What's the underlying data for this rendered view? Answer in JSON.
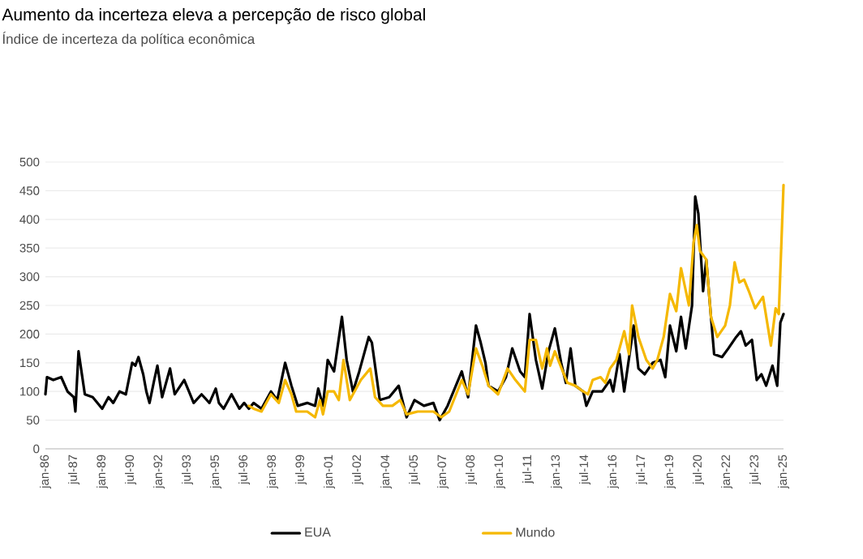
{
  "chart_data": {
    "type": "line",
    "title": "Aumento da incerteza eleva a percepção de risco global",
    "subtitle": "Índice de incerteza da política econômica",
    "xlim": [
      "1986-01",
      "2025-01"
    ],
    "xticks": [
      {
        "value": "1986-01",
        "label": "jan-86"
      },
      {
        "value": "1987-07",
        "label": "jul-87"
      },
      {
        "value": "1989-01",
        "label": "jan-89"
      },
      {
        "value": "1990-07",
        "label": "jul-90"
      },
      {
        "value": "1992-01",
        "label": "jan-92"
      },
      {
        "value": "1993-07",
        "label": "jul-93"
      },
      {
        "value": "1995-01",
        "label": "jan-95"
      },
      {
        "value": "1996-07",
        "label": "jul-96"
      },
      {
        "value": "1998-01",
        "label": "jan-98"
      },
      {
        "value": "1999-07",
        "label": "jul-99"
      },
      {
        "value": "2001-01",
        "label": "jan-01"
      },
      {
        "value": "2002-07",
        "label": "jul-02"
      },
      {
        "value": "2004-01",
        "label": "jan-04"
      },
      {
        "value": "2005-07",
        "label": "jul-05"
      },
      {
        "value": "2007-01",
        "label": "jan-07"
      },
      {
        "value": "2008-07",
        "label": "jul-08"
      },
      {
        "value": "2010-01",
        "label": "jan-10"
      },
      {
        "value": "2011-07",
        "label": "jul-11"
      },
      {
        "value": "2013-01",
        "label": "jan-13"
      },
      {
        "value": "2014-07",
        "label": "jul-14"
      },
      {
        "value": "2016-01",
        "label": "jan-16"
      },
      {
        "value": "2017-07",
        "label": "jul-17"
      },
      {
        "value": "2019-01",
        "label": "jan-19"
      },
      {
        "value": "2020-07",
        "label": "jul-20"
      },
      {
        "value": "2022-01",
        "label": "jan-22"
      },
      {
        "value": "2023-07",
        "label": "jul-23"
      },
      {
        "value": "2025-01",
        "label": "jan-25"
      }
    ],
    "ylim": [
      0,
      500
    ],
    "yticks": [
      0,
      50,
      100,
      150,
      200,
      250,
      300,
      350,
      400,
      450,
      500
    ],
    "grid": "y",
    "legend": "bottom",
    "marker": "none",
    "line_style": "solid",
    "series": [
      {
        "name": "EUA",
        "color": "#000000",
        "x": [
          "1986-01",
          "1986-02",
          "1986-06",
          "1986-11",
          "1987-03",
          "1987-07",
          "1987-08",
          "1987-10",
          "1988-02",
          "1988-07",
          "1989-01",
          "1989-05",
          "1989-08",
          "1989-12",
          "1990-04",
          "1990-08",
          "1990-10",
          "1990-12",
          "1991-03",
          "1991-05",
          "1991-07",
          "1991-10",
          "1991-12",
          "1992-03",
          "1992-08",
          "1992-11",
          "1993-05",
          "1993-08",
          "1993-11",
          "1994-04",
          "1994-09",
          "1995-01",
          "1995-03",
          "1995-06",
          "1995-11",
          "1996-04",
          "1996-07",
          "1996-10",
          "1997-01",
          "1997-06",
          "1997-12",
          "1998-04",
          "1998-09",
          "1999-01",
          "1999-05",
          "1999-11",
          "2000-04",
          "2000-06",
          "2000-09",
          "2000-12",
          "2001-04",
          "2001-09",
          "2001-12",
          "2002-04",
          "2002-08",
          "2003-02",
          "2003-04",
          "2003-09",
          "2004-03",
          "2004-09",
          "2005-02",
          "2005-07",
          "2006-01",
          "2006-07",
          "2006-11",
          "2007-04",
          "2008-01",
          "2008-05",
          "2008-10",
          "2009-01",
          "2009-04",
          "2009-06",
          "2009-12",
          "2010-05",
          "2010-09",
          "2011-02",
          "2011-05",
          "2011-08",
          "2011-12",
          "2012-04",
          "2012-08",
          "2012-12",
          "2013-04",
          "2013-07",
          "2013-10",
          "2014-01",
          "2014-06",
          "2014-08",
          "2014-12",
          "2015-06",
          "2015-11",
          "2016-01",
          "2016-05",
          "2016-08",
          "2017-02",
          "2017-05",
          "2017-09",
          "2018-02",
          "2018-07",
          "2018-10",
          "2019-01",
          "2019-05",
          "2019-08",
          "2019-11",
          "2020-03",
          "2020-05",
          "2020-07",
          "2020-10",
          "2020-12",
          "2021-03",
          "2021-05",
          "2021-10",
          "2022-02",
          "2022-07",
          "2022-10",
          "2023-01",
          "2023-05",
          "2023-08",
          "2023-11",
          "2024-02",
          "2024-06",
          "2024-09",
          "2024-11",
          "2025-01"
        ],
        "values": [
          95,
          125,
          120,
          125,
          100,
          90,
          65,
          170,
          95,
          90,
          70,
          90,
          80,
          100,
          95,
          150,
          145,
          160,
          130,
          100,
          80,
          120,
          145,
          90,
          140,
          95,
          120,
          100,
          80,
          95,
          80,
          105,
          80,
          70,
          95,
          70,
          80,
          70,
          80,
          70,
          100,
          85,
          150,
          110,
          75,
          80,
          75,
          105,
          75,
          155,
          135,
          230,
          155,
          100,
          135,
          195,
          185,
          85,
          90,
          110,
          55,
          85,
          75,
          80,
          50,
          75,
          135,
          90,
          215,
          185,
          150,
          110,
          100,
          125,
          175,
          135,
          125,
          235,
          155,
          105,
          170,
          210,
          150,
          115,
          175,
          110,
          100,
          75,
          100,
          100,
          120,
          100,
          165,
          100,
          215,
          140,
          130,
          150,
          155,
          125,
          215,
          170,
          230,
          175,
          250,
          440,
          410,
          275,
          330,
          230,
          165,
          160,
          175,
          195,
          205,
          180,
          190,
          120,
          130,
          110,
          145,
          110,
          220,
          235
        ]
      },
      {
        "name": "Mundo",
        "color": "#f5b800",
        "x": [
          "1996-10",
          "1997-01",
          "1997-06",
          "1997-12",
          "1998-05",
          "1998-09",
          "1999-01",
          "1999-04",
          "1999-11",
          "2000-04",
          "2000-07",
          "2000-09",
          "2000-12",
          "2001-04",
          "2001-07",
          "2001-10",
          "2002-02",
          "2002-09",
          "2003-03",
          "2003-06",
          "2003-11",
          "2004-05",
          "2004-10",
          "2005-02",
          "2005-09",
          "2006-07",
          "2006-12",
          "2007-05",
          "2008-01",
          "2008-05",
          "2008-10",
          "2009-02",
          "2009-06",
          "2009-12",
          "2010-06",
          "2010-11",
          "2011-05",
          "2011-08",
          "2011-12",
          "2012-04",
          "2012-07",
          "2012-09",
          "2012-12",
          "2013-05",
          "2013-08",
          "2014-01",
          "2014-06",
          "2014-09",
          "2014-12",
          "2015-05",
          "2015-08",
          "2015-11",
          "2016-03",
          "2016-08",
          "2016-11",
          "2017-01",
          "2017-05",
          "2017-10",
          "2018-02",
          "2018-05",
          "2018-09",
          "2019-01",
          "2019-05",
          "2019-08",
          "2020-01",
          "2020-04",
          "2020-06",
          "2020-08",
          "2020-12",
          "2021-03",
          "2021-07",
          "2021-12",
          "2022-03",
          "2022-06",
          "2022-09",
          "2022-12",
          "2023-03",
          "2023-07",
          "2023-12",
          "2024-05",
          "2024-08",
          "2024-10",
          "2024-12",
          "2025-01"
        ],
        "values": [
          75,
          70,
          65,
          95,
          80,
          120,
          95,
          65,
          65,
          55,
          85,
          60,
          100,
          100,
          85,
          155,
          85,
          120,
          140,
          90,
          75,
          75,
          85,
          60,
          65,
          65,
          55,
          65,
          120,
          95,
          175,
          145,
          110,
          95,
          140,
          120,
          100,
          190,
          190,
          140,
          175,
          145,
          170,
          135,
          115,
          110,
          100,
          95,
          120,
          125,
          115,
          140,
          155,
          205,
          165,
          250,
          195,
          155,
          140,
          155,
          195,
          270,
          240,
          315,
          250,
          360,
          390,
          345,
          330,
          230,
          195,
          215,
          250,
          325,
          290,
          295,
          275,
          245,
          265,
          180,
          245,
          235,
          385,
          460
        ]
      }
    ]
  }
}
